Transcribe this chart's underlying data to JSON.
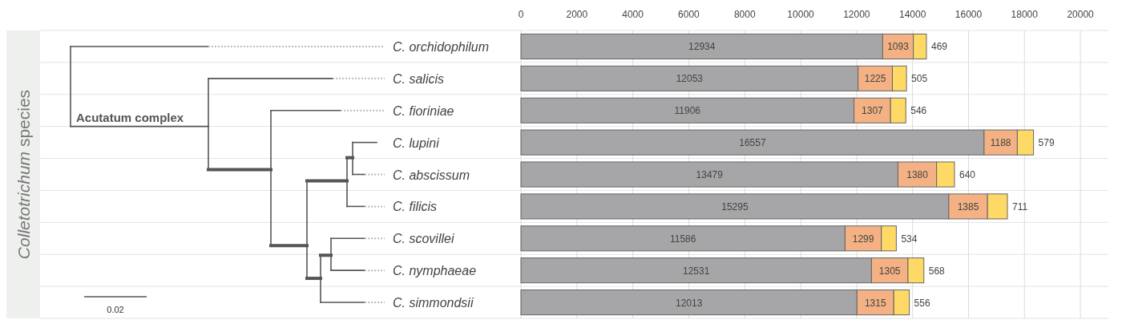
{
  "chart_data": {
    "type": "bar",
    "orientation": "horizontal",
    "stacked": true,
    "categories": [
      "C. orchidophilum",
      "C. salicis",
      "C. fioriniae",
      "C. lupini",
      "C. abscissum",
      "C. filicis",
      "C. scovillei",
      "C. nymphaeae",
      "C. simmondsii"
    ],
    "series": [
      {
        "color": "#a6a6a8",
        "values": [
          12934,
          12053,
          11906,
          16557,
          13479,
          15295,
          11586,
          12531,
          12013
        ]
      },
      {
        "color": "#f4b183",
        "values": [
          1093,
          1225,
          1307,
          1188,
          1380,
          1385,
          1299,
          1305,
          1315
        ]
      },
      {
        "color": "#ffd966",
        "values": [
          469,
          505,
          546,
          579,
          640,
          711,
          534,
          568,
          556
        ]
      }
    ],
    "xlim": [
      0,
      21000
    ],
    "xticks": [
      0,
      2000,
      4000,
      6000,
      8000,
      10000,
      12000,
      14000,
      16000,
      18000,
      20000
    ],
    "grid": "x",
    "data_labels": true,
    "annotations": [
      "Acutatum complex",
      "0.02",
      "Colletotrichum species"
    ]
  }
}
